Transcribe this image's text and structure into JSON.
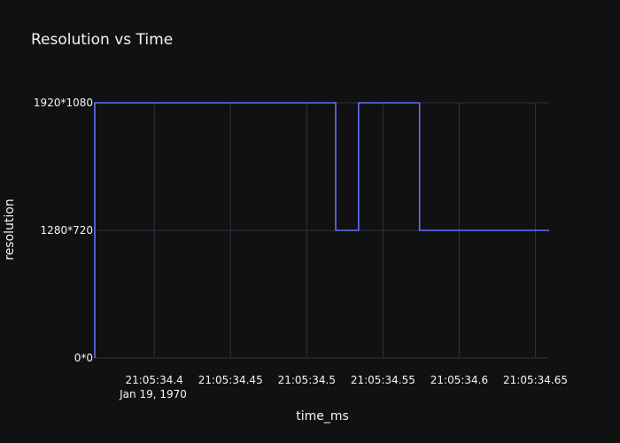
{
  "chart_data": {
    "type": "line",
    "line_shape": "step",
    "title": "Resolution vs Time",
    "xlabel": "time_ms",
    "ylabel": "resolution",
    "x_tick_labels": [
      "21:05:34.4",
      "21:05:34.45",
      "21:05:34.5",
      "21:05:34.55",
      "21:05:34.6",
      "21:05:34.65"
    ],
    "x_date_label": "Jan 19, 1970",
    "x_ticks_s": [
      34.4,
      34.45,
      34.5,
      34.55,
      34.6,
      34.65
    ],
    "xlim_s": [
      34.361,
      34.659
    ],
    "y_categories": [
      "0*0",
      "1280*720",
      "1920*1080"
    ],
    "grid": true,
    "colors": {
      "background": "#111111",
      "grid": "#283442",
      "text": "#f2f5fa",
      "series": "#636efa"
    },
    "series": [
      {
        "x_s": [
          34.361,
          34.361,
          34.519,
          34.534,
          34.574,
          34.659
        ],
        "y": [
          "0*0",
          "1920*1080",
          "1280*720",
          "1920*1080",
          "1280*720",
          "1280*720"
        ]
      }
    ]
  }
}
